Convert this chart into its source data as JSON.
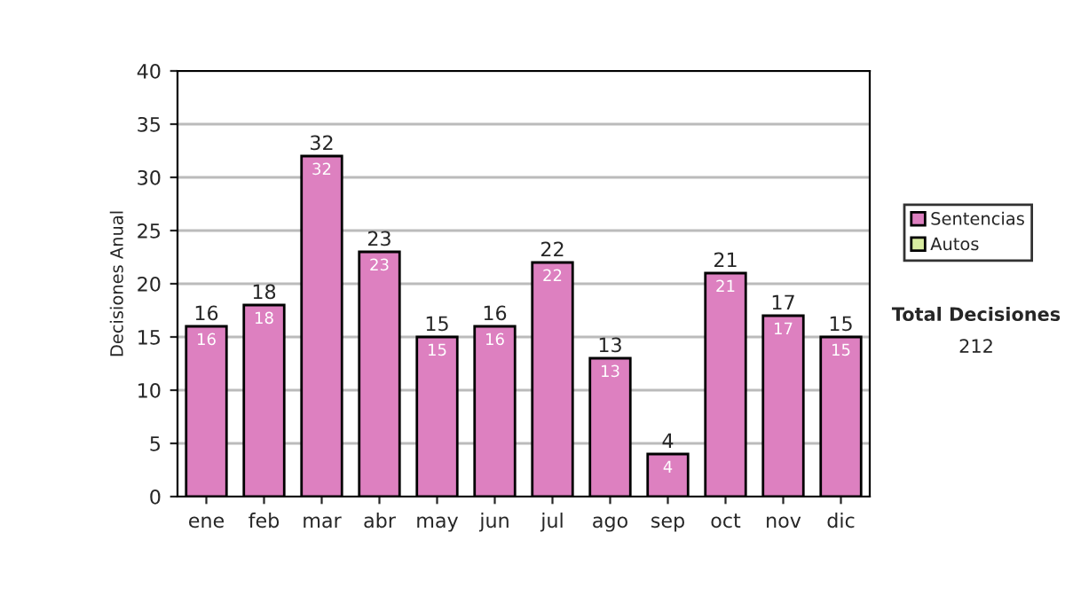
{
  "chart_data": {
    "type": "bar",
    "ylabel": "Decisiones Anual",
    "categories": [
      "ene",
      "feb",
      "mar",
      "abr",
      "may",
      "jun",
      "jul",
      "ago",
      "sep",
      "oct",
      "nov",
      "dic"
    ],
    "series": [
      {
        "name": "Sentencias",
        "color": "#dd80c0",
        "values": [
          16,
          18,
          32,
          23,
          15,
          16,
          22,
          13,
          4,
          21,
          17,
          15
        ],
        "value_labels": [
          "16",
          "18",
          "32",
          "23",
          "15",
          "16",
          "22",
          "13",
          "4",
          "21",
          "17",
          "15"
        ]
      },
      {
        "name": "Autos",
        "color": "#d8eca0",
        "values": [
          null,
          null,
          null,
          null,
          null,
          null,
          null,
          null,
          null,
          null,
          null,
          null
        ]
      }
    ],
    "stacked": true,
    "totals": [
      "16",
      "18",
      "32",
      "23",
      "15",
      "16",
      "22",
      "13",
      "4",
      "21",
      "17",
      "15"
    ],
    "ylim": [
      0,
      40
    ],
    "yticks": [
      0,
      5,
      10,
      15,
      20,
      25,
      30,
      35,
      40
    ],
    "grid": "y",
    "legend": "right",
    "annotations": [
      "Total Decisiones",
      "212"
    ]
  }
}
